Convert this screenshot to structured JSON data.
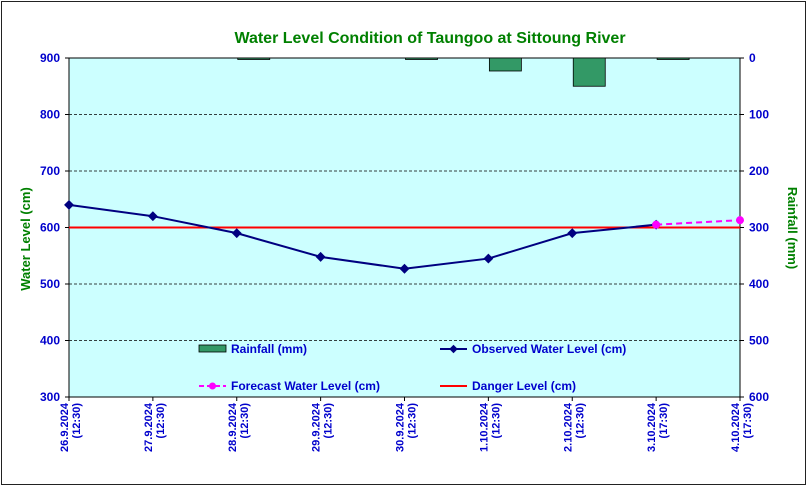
{
  "colors": {
    "plot_background": "#ccffff",
    "observed": "#000080",
    "forecast": "#ff00ff",
    "danger": "#ff0000",
    "rainfall_fill": "#339966",
    "title_text": "#008000",
    "tick_text": "#0000cc"
  },
  "chart_data": {
    "type": "line",
    "title": "Water Level Condition of Taungoo at  Sittoung River",
    "ylabel": "Water Level (cm)",
    "y2label": "Rainfall (mm)",
    "ylim": [
      300,
      900
    ],
    "y2lim": [
      0,
      600
    ],
    "y2_inverted": true,
    "yticks": [
      "900",
      "800",
      "700",
      "600",
      "500",
      "400",
      "300"
    ],
    "y2ticks": [
      "0",
      "100",
      "200",
      "300",
      "400",
      "500",
      "600"
    ],
    "grid": true,
    "legend_position": "inside-bottom",
    "categories": [
      [
        "26.9.2024",
        "(12:30)"
      ],
      [
        "27.9.2024",
        "(12:30)"
      ],
      [
        "28.9.2024",
        "(12:30)"
      ],
      [
        "29.9.2024",
        "(12:30)"
      ],
      [
        "30.9.2024",
        "(12:30)"
      ],
      [
        "1.10.2024",
        "(12:30)"
      ],
      [
        "2.10.2024",
        "(12:30)"
      ],
      [
        "3.10.2024",
        "(17:30)"
      ],
      [
        "4.10.2024",
        "(17:30)"
      ]
    ],
    "series": [
      {
        "name": "Rainfall (mm)",
        "type": "bar",
        "axis": "right",
        "values": [
          0,
          0,
          1,
          0,
          1,
          23,
          50,
          1,
          null
        ]
      },
      {
        "name": "Observed Water Level (cm)",
        "type": "line",
        "axis": "left",
        "values": [
          640,
          620,
          590,
          548,
          527,
          545,
          590,
          605,
          null
        ]
      },
      {
        "name": "Forecast Water Level (cm)",
        "type": "line-dashed",
        "axis": "left",
        "values": [
          null,
          null,
          null,
          null,
          null,
          null,
          null,
          605,
          613
        ]
      },
      {
        "name": "Danger Level (cm)",
        "type": "line",
        "axis": "left",
        "values": [
          600,
          600,
          600,
          600,
          600,
          600,
          600,
          600,
          600
        ]
      }
    ]
  }
}
